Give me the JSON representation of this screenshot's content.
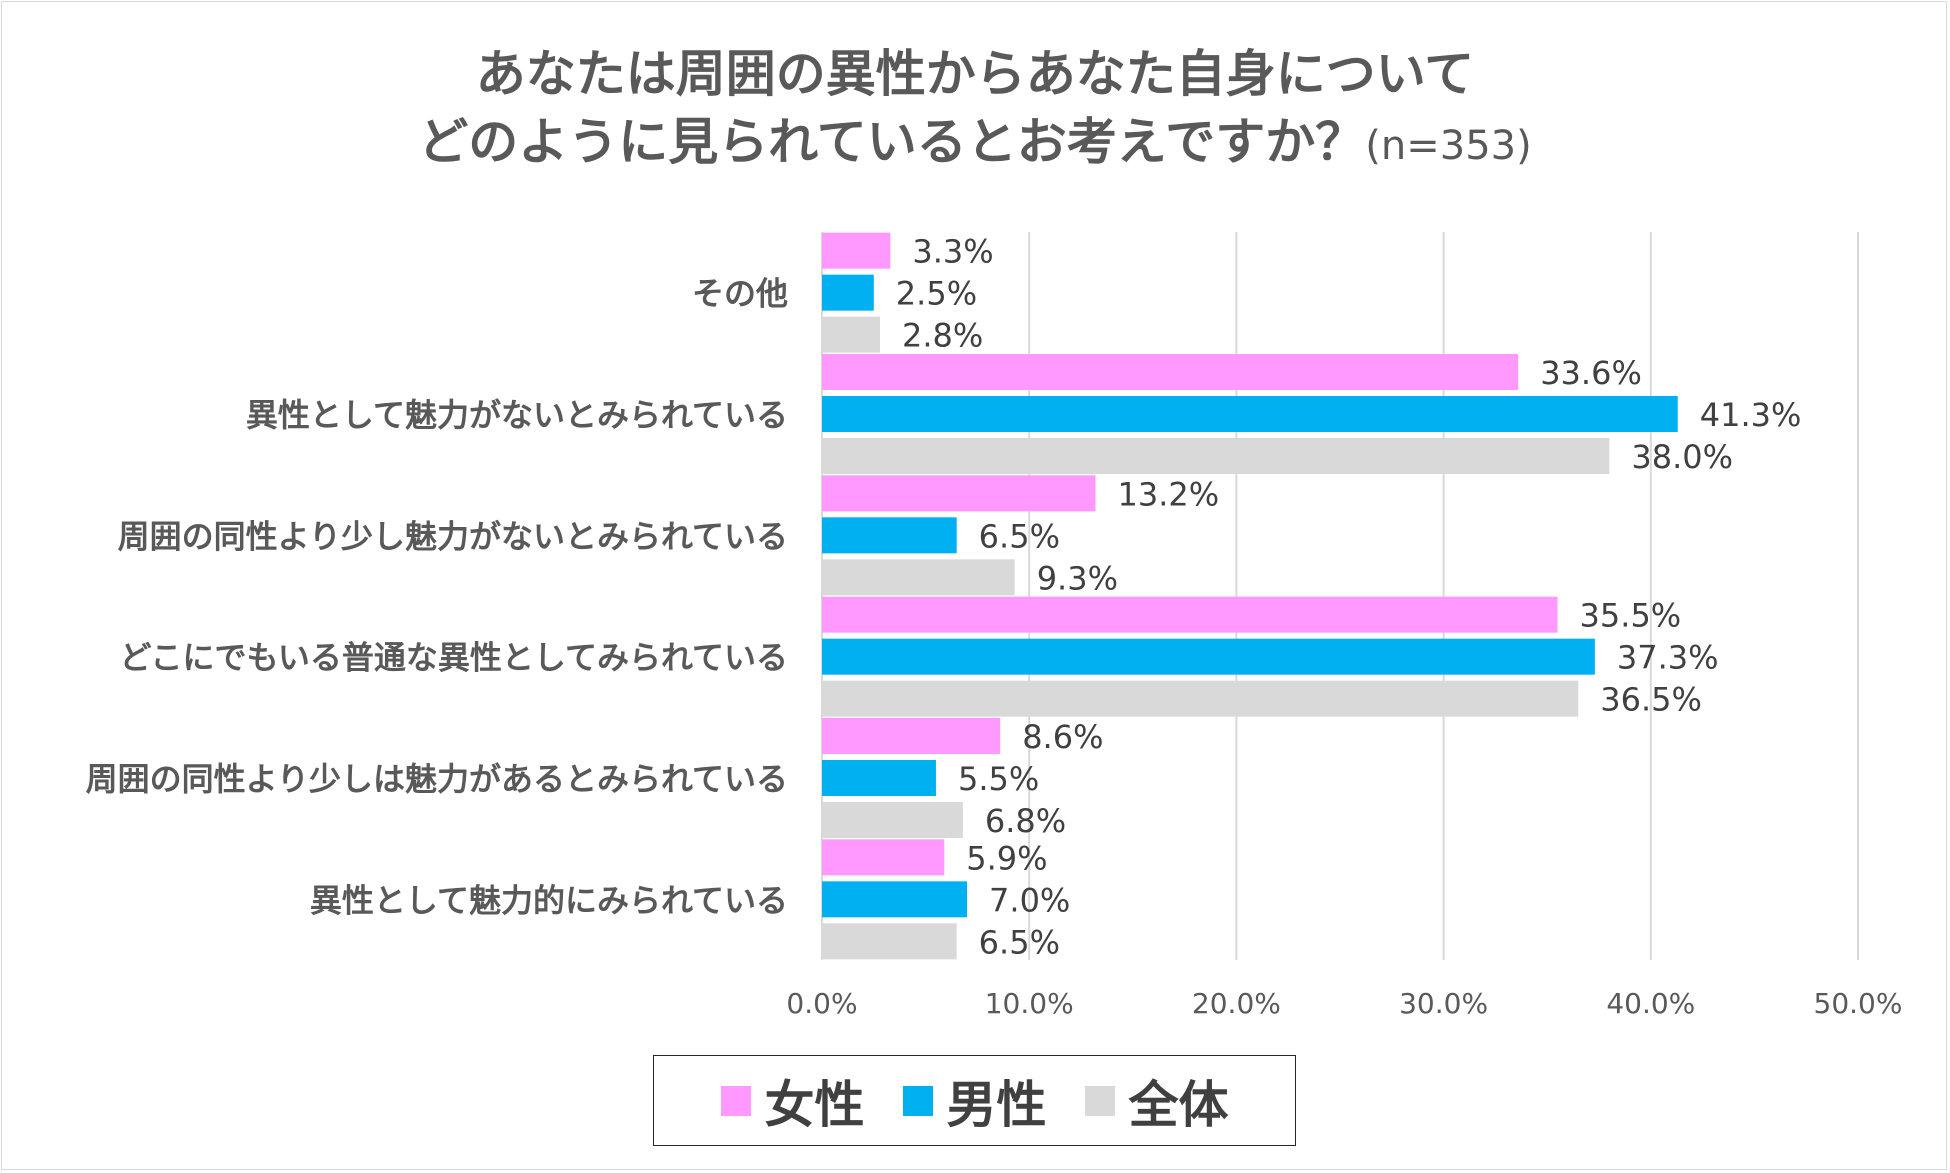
{
  "title": {
    "line1": "あなたは周囲の異性からあなた自身について",
    "line2": "どのように見られているとお考えですか？",
    "n_label": "(n=353)"
  },
  "chart_data": {
    "type": "bar",
    "orientation": "horizontal",
    "categories": [
      "その他",
      "異性として魅力がないとみられている",
      "周囲の同性より少し魅力がないとみられている",
      "どこにでもいる普通な異性としてみられている",
      "周囲の同性より少しは魅力があるとみられている",
      "異性として魅力的にみられている"
    ],
    "series": [
      {
        "name": "女性",
        "color": "#ff99ff",
        "values": [
          3.3,
          33.6,
          13.2,
          35.5,
          8.6,
          5.9
        ],
        "labels": [
          "3.3%",
          "33.6%",
          "13.2%",
          "35.5%",
          "8.6%",
          "5.9%"
        ]
      },
      {
        "name": "男性",
        "color": "#00b0f0",
        "values": [
          2.5,
          41.3,
          6.5,
          37.3,
          5.5,
          7.0
        ],
        "labels": [
          "2.5%",
          "41.3%",
          "6.5%",
          "37.3%",
          "5.5%",
          "7.0%"
        ]
      },
      {
        "name": "全体",
        "color": "#d9d9d9",
        "values": [
          2.8,
          38.0,
          9.3,
          36.5,
          6.8,
          6.5
        ],
        "labels": [
          "2.8%",
          "38.0%",
          "9.3%",
          "36.5%",
          "6.8%",
          "6.5%"
        ]
      }
    ],
    "xlim": [
      0,
      50
    ],
    "xticks": [
      "0.0%",
      "10.0%",
      "20.0%",
      "30.0%",
      "40.0%",
      "50.0%"
    ],
    "grid": true,
    "legend": "bottom"
  },
  "legend": {
    "items": [
      {
        "label": "女性",
        "color": "#ff99ff"
      },
      {
        "label": "男性",
        "color": "#00b0f0"
      },
      {
        "label": "全体",
        "color": "#d9d9d9"
      }
    ]
  }
}
